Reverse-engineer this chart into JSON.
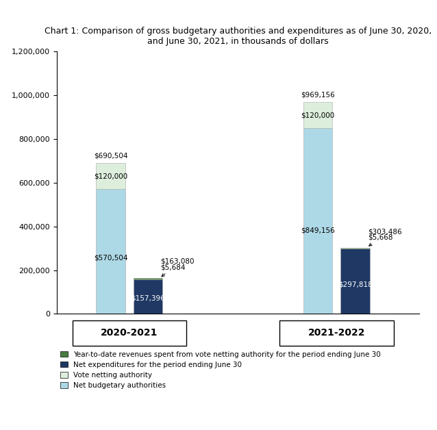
{
  "title": "Chart 1: Comparison of gross budgetary authorities and expenditures as of June 30, 2020,\nand June 30, 2021, in thousands of dollars",
  "groups": [
    "2020-2021",
    "2021-2022"
  ],
  "net_budgetary": [
    570504,
    849156
  ],
  "vote_netting": [
    120000,
    120000
  ],
  "net_expenditures": [
    157396,
    297818
  ],
  "ytd_revenues": [
    5684,
    5668
  ],
  "total_authority_labels": [
    "$690,504",
    "$969,156"
  ],
  "total_exp_labels": [
    "$163,080",
    "$303,486"
  ],
  "net_bud_labels": [
    "$570,504",
    "$849,156"
  ],
  "vote_net_labels": [
    "$120,000",
    "$120,000"
  ],
  "net_exp_labels": [
    "$157,396",
    "$297,818"
  ],
  "ytd_labels": [
    "$5,684",
    "$5,668"
  ],
  "color_net_bud": "#add8e6",
  "color_vote_net": "#ddeedd",
  "color_net_exp": "#1f3864",
  "color_ytd": "#4a7c3f",
  "ylim": [
    0,
    1200000
  ],
  "yticks": [
    0,
    200000,
    400000,
    600000,
    800000,
    1000000,
    1200000
  ],
  "legend_labels": [
    "Year-to-date revenues spent from vote netting authority for the period ending June 30",
    "Net expenditures for the period ending June 30",
    "Vote netting authority",
    "Net budgetary authorities"
  ],
  "bar_width": 0.28,
  "group_centers": [
    1.0,
    3.0
  ],
  "auth_offsets": [
    -0.16,
    -0.16
  ],
  "exp_offsets": [
    0.16,
    0.16
  ]
}
